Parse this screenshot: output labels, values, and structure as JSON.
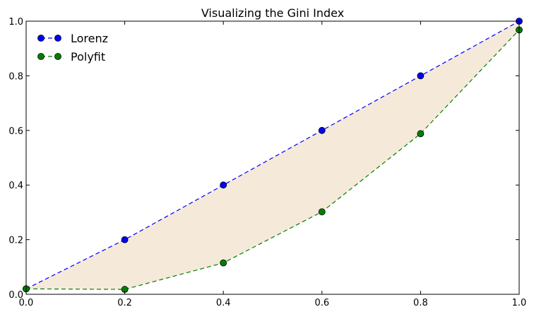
{
  "chart_data": {
    "type": "line",
    "title": "Visualizing the Gini Index",
    "xlabel": "",
    "ylabel": "",
    "xlim": [
      0,
      1
    ],
    "ylim": [
      0,
      1
    ],
    "grid": false,
    "legend": "top-left",
    "x_ticks": [
      "0.0",
      "0.2",
      "0.4",
      "0.6",
      "0.8",
      "1.0"
    ],
    "y_ticks": [
      "0.0",
      "0.2",
      "0.4",
      "0.6",
      "0.8",
      "1.0"
    ],
    "x": [
      0.0,
      0.2,
      0.4,
      0.6,
      0.8,
      1.0
    ],
    "series": [
      {
        "name": "Lorenz",
        "values": [
          0.02,
          0.2,
          0.4,
          0.6,
          0.8,
          1.0
        ],
        "color": "#0000ff",
        "marker": "circle",
        "linestyle": "dashed"
      },
      {
        "name": "Polyfit",
        "values": [
          0.02,
          0.018,
          0.115,
          0.302,
          0.588,
          0.968
        ],
        "color": "#008000",
        "marker": "circle",
        "linestyle": "dashed"
      }
    ],
    "fill_between": {
      "between": [
        "Lorenz",
        "Polyfit"
      ],
      "color": "#f5e9da"
    }
  }
}
